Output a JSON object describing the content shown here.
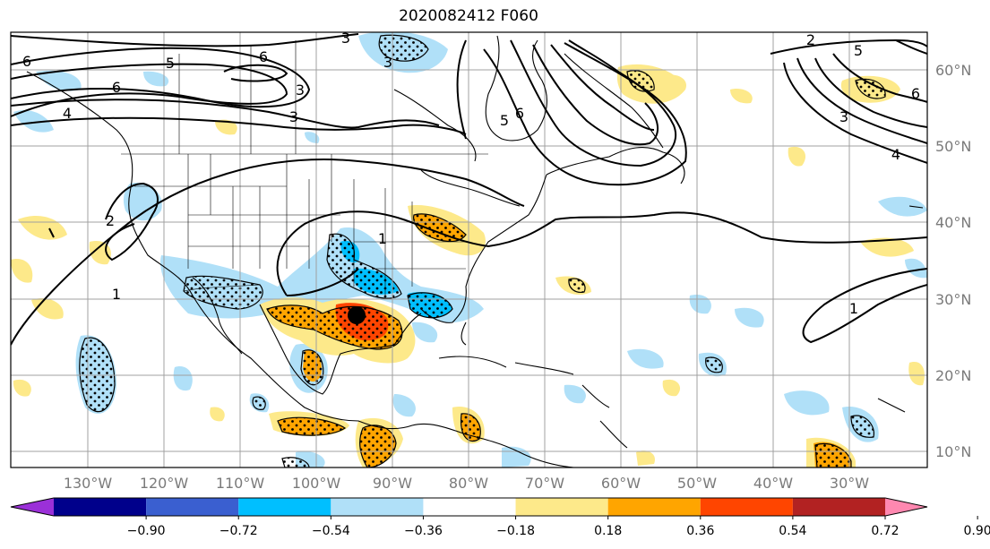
{
  "title": "2020082412 F060",
  "lat_labels": [
    "60°N",
    "50°N",
    "40°N",
    "30°N",
    "20°N",
    "10°N"
  ],
  "lon_labels": [
    "130°W",
    "120°W",
    "110°W",
    "100°W",
    "90°W",
    "80°W",
    "70°W",
    "60°W",
    "50°W",
    "40°W",
    "30°W"
  ],
  "colorbar": {
    "ticks": [
      "−0.90",
      "−0.72",
      "−0.54",
      "−0.36",
      "−0.18",
      "0.18",
      "0.36",
      "0.54",
      "0.72",
      "0.90"
    ],
    "colors": [
      "#9b30d8",
      "#00008b",
      "#3a5fd0",
      "#00bfff",
      "#b0e0f8",
      "#ffffff",
      "#fde98a",
      "#ffa500",
      "#ff4500",
      "#b22222",
      "#ff88b0"
    ]
  },
  "contour_labels": {
    "nw_6a": "6",
    "nw_5": "5",
    "nw_6b": "6",
    "nw_6c": "6",
    "nw_3a": "3",
    "nw_3b": "3",
    "nw_4": "4",
    "nw_3c": "3",
    "n_3": "3",
    "n_5": "5",
    "n_6": "6",
    "ne_2": "2",
    "ne_5": "5",
    "ne_6": "6",
    "ne_3": "3",
    "ne_4": "4",
    "w_2": "2",
    "w_1": "1",
    "c_1": "1",
    "e_1": "1"
  }
}
